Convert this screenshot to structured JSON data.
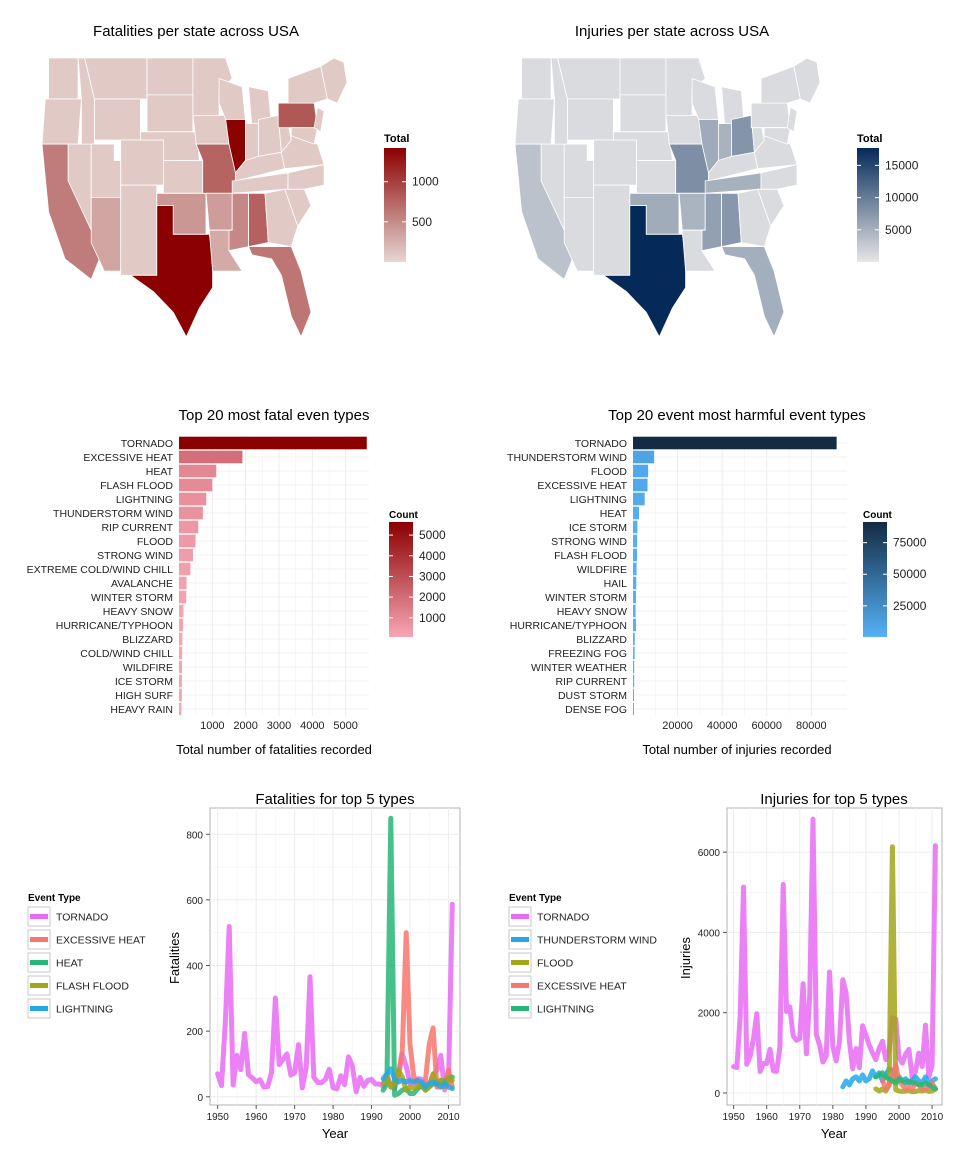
{
  "colors": {
    "red_dark": "#8b0000",
    "red_light": "#e6d7d3",
    "blue_dark": "#052a5a",
    "blue_light": "#e6e6e6",
    "bar_blue_light": "#56b1f7",
    "bar_blue_dark": "#132b43",
    "bar_red_light": "#f7a6b4",
    "bar_red_dark": "#8b0000",
    "grid": "#ececec",
    "panel_border": "#b3b3b3"
  },
  "chart_data": [
    {
      "type": "map",
      "title": "Fatalities per state across USA",
      "legend": {
        "title": "Total",
        "ticks": [
          "1000",
          "500"
        ],
        "tick_values": [
          1000,
          500
        ],
        "range": [
          0,
          1420
        ],
        "placement": "right"
      },
      "states": [
        {
          "name": "Texas",
          "value": 1420
        },
        {
          "name": "Illinois",
          "value": 1410
        },
        {
          "name": "Pennsylvania",
          "value": 840
        },
        {
          "name": "Missouri",
          "value": 760
        },
        {
          "name": "Alabama",
          "value": 780
        },
        {
          "name": "California",
          "value": 600
        },
        {
          "name": "Florida",
          "value": 640
        },
        {
          "name": "Mississippi",
          "value": 520
        },
        {
          "name": "Arizona",
          "value": 330
        },
        {
          "name": "Oklahoma",
          "value": 420
        },
        {
          "name": "Arkansas",
          "value": 380
        },
        {
          "name": "Louisiana",
          "value": 300
        }
      ]
    },
    {
      "type": "map",
      "title": "Injuries per state across USA",
      "legend": {
        "title": "Total",
        "ticks": [
          "15000",
          "10000",
          "5000"
        ],
        "tick_values": [
          15000,
          10000,
          5000
        ],
        "range": [
          0,
          17700
        ],
        "placement": "right"
      },
      "states": [
        {
          "name": "Texas",
          "value": 17700
        },
        {
          "name": "Missouri",
          "value": 8200
        },
        {
          "name": "Ohio",
          "value": 7700
        },
        {
          "name": "Alabama",
          "value": 7400
        },
        {
          "name": "Mississippi",
          "value": 6600
        },
        {
          "name": "Illinois",
          "value": 5600
        },
        {
          "name": "Oklahoma",
          "value": 5500
        },
        {
          "name": "Tennessee",
          "value": 5000
        },
        {
          "name": "Florida",
          "value": 5200
        },
        {
          "name": "Indiana",
          "value": 4800
        },
        {
          "name": "Arkansas",
          "value": 4700
        },
        {
          "name": "California",
          "value": 3400
        }
      ]
    },
    {
      "type": "bar",
      "title": "Top 20 most fatal even types",
      "xlabel": "Total number of fatalities recorded",
      "ylabel": "",
      "xlim": [
        0,
        5700
      ],
      "xticks": [
        1000,
        2000,
        3000,
        4000,
        5000
      ],
      "categories": [
        "TORNADO",
        "EXCESSIVE HEAT",
        "HEAT",
        "FLASH FLOOD",
        "LIGHTNING",
        "THUNDERSTORM WIND",
        "RIP CURRENT",
        "FLOOD",
        "STRONG WIND",
        "EXTREME COLD/WIND CHILL",
        "AVALANCHE",
        "WINTER STORM",
        "HEAVY SNOW",
        "HURRICANE/TYPHOON",
        "BLIZZARD",
        "COLD/WIND CHILL",
        "WILDFIRE",
        "ICE STORM",
        "HIGH SURF",
        "HEAVY RAIN"
      ],
      "values": [
        5633,
        1903,
        1118,
        998,
        817,
        717,
        577,
        495,
        419,
        342,
        225,
        217,
        134,
        125,
        101,
        95,
        90,
        89,
        87,
        72
      ],
      "legend": {
        "title": "Count",
        "ticks": [
          "5000",
          "4000",
          "3000",
          "2000",
          "1000"
        ],
        "tick_values": [
          5000,
          4000,
          3000,
          2000,
          1000
        ],
        "range": [
          72,
          5633
        ],
        "placement": "right"
      }
    },
    {
      "type": "bar",
      "title": "Top 20 event most harmful event types",
      "xlabel": "Total number of injuries recorded",
      "ylabel": "",
      "xlim": [
        0,
        96000
      ],
      "xticks": [
        20000,
        40000,
        60000,
        80000
      ],
      "categories": [
        "TORNADO",
        "THUNDERSTORM WIND",
        "FLOOD",
        "EXCESSIVE HEAT",
        "LIGHTNING",
        "HEAT",
        "ICE STORM",
        "STRONG WIND",
        "FLASH FLOOD",
        "WILDFIRE",
        "HAIL",
        "WINTER STORM",
        "HEAVY SNOW",
        "HURRICANE/TYPHOON",
        "BLIZZARD",
        "FREEZING FOG",
        "WINTER WEATHER",
        "RIP CURRENT",
        "DUST STORM",
        "DENSE FOG"
      ],
      "values": [
        91346,
        9493,
        6789,
        6525,
        5230,
        2682,
        1975,
        1883,
        1785,
        1606,
        1467,
        1338,
        1164,
        1333,
        805,
        734,
        538,
        529,
        440,
        342
      ],
      "legend": {
        "title": "Count",
        "ticks": [
          "75000",
          "50000",
          "25000"
        ],
        "tick_values": [
          75000,
          50000,
          25000
        ],
        "range": [
          342,
          91346
        ],
        "placement": "right"
      }
    },
    {
      "type": "line",
      "title": "Fatalities for top 5 types",
      "xlabel": "Year",
      "ylabel": "Fatalities",
      "xlim": [
        1948,
        2013
      ],
      "ylim": [
        -25,
        880
      ],
      "xticks": [
        1950,
        1960,
        1970,
        1980,
        1990,
        2000,
        2010
      ],
      "yticks": [
        0,
        200,
        400,
        600,
        800
      ],
      "legend": {
        "title": "Event Type",
        "placement": "left"
      },
      "series": [
        {
          "name": "TORNADO",
          "color": "#e76bf3",
          "x": [
            1950,
            1951,
            1952,
            1953,
            1954,
            1955,
            1956,
            1957,
            1958,
            1959,
            1960,
            1961,
            1962,
            1963,
            1964,
            1965,
            1966,
            1967,
            1968,
            1969,
            1970,
            1971,
            1972,
            1973,
            1974,
            1975,
            1976,
            1977,
            1978,
            1979,
            1980,
            1981,
            1982,
            1983,
            1984,
            1985,
            1986,
            1987,
            1988,
            1989,
            1990,
            1991,
            1992,
            1993,
            1994,
            1995,
            1996,
            1997,
            1998,
            1999,
            2000,
            2001,
            2002,
            2003,
            2004,
            2005,
            2006,
            2007,
            2008,
            2009,
            2010,
            2011
          ],
          "y": [
            70,
            34,
            230,
            519,
            36,
            126,
            83,
            193,
            67,
            58,
            46,
            52,
            30,
            31,
            73,
            301,
            98,
            114,
            131,
            66,
            73,
            159,
            27,
            89,
            366,
            60,
            44,
            43,
            53,
            84,
            28,
            24,
            64,
            37,
            122,
            94,
            15,
            59,
            32,
            50,
            53,
            39,
            39,
            33,
            69,
            30,
            25,
            67,
            130,
            94,
            41,
            40,
            55,
            54,
            35,
            38,
            67,
            81,
            126,
            21,
            45,
            587
          ]
        },
        {
          "name": "EXCESSIVE HEAT",
          "color": "#f8766d",
          "x": [
            1995,
            1996,
            1997,
            1998,
            1999,
            2000,
            2001,
            2002,
            2003,
            2004,
            2005,
            2006,
            2007,
            2008,
            2009,
            2010,
            2011
          ],
          "y": [
            40,
            30,
            70,
            140,
            500,
            160,
            60,
            40,
            30,
            50,
            160,
            210,
            30,
            30,
            40,
            80,
            30
          ]
        },
        {
          "name": "HEAT",
          "color": "#27b675",
          "x": [
            1993,
            1994,
            1995,
            1996,
            1997,
            1998,
            1999,
            2000,
            2001,
            2002,
            2003,
            2004,
            2005,
            2006,
            2007,
            2008,
            2009,
            2010,
            2011
          ],
          "y": [
            20,
            40,
            849,
            5,
            10,
            20,
            25,
            10,
            10,
            25,
            35,
            20,
            30,
            40,
            40,
            50,
            45,
            55,
            60
          ]
        },
        {
          "name": "FLASH FLOOD",
          "color": "#a3a51a",
          "x": [
            1993,
            1994,
            1995,
            1996,
            1997,
            1998,
            1999,
            2000,
            2001,
            2002,
            2003,
            2004,
            2005,
            2006,
            2007,
            2008,
            2009,
            2010,
            2011
          ],
          "y": [
            40,
            60,
            30,
            40,
            80,
            60,
            20,
            30,
            25,
            30,
            40,
            20,
            30,
            70,
            40,
            50,
            30,
            60,
            50
          ]
        },
        {
          "name": "LIGHTNING",
          "color": "#23a8e5",
          "x": [
            1993,
            1994,
            1995,
            1996,
            1997,
            1998,
            1999,
            2000,
            2001,
            2002,
            2003,
            2004,
            2005,
            2006,
            2007,
            2008,
            2009,
            2010,
            2011
          ],
          "y": [
            55,
            70,
            85,
            55,
            45,
            50,
            45,
            50,
            45,
            50,
            45,
            30,
            40,
            45,
            40,
            30,
            40,
            30,
            25
          ]
        }
      ]
    },
    {
      "type": "line",
      "title": "Injuries for top 5 types",
      "xlabel": "Year",
      "ylabel": "Injuries",
      "xlim": [
        1948,
        2013
      ],
      "ylim": [
        -300,
        7100
      ],
      "xticks": [
        1950,
        1960,
        1970,
        1980,
        1990,
        2000,
        2010
      ],
      "yticks": [
        0,
        2000,
        4000,
        6000
      ],
      "legend": {
        "title": "Event Type",
        "placement": "left"
      },
      "series": [
        {
          "name": "TORNADO",
          "color": "#e76bf3",
          "x": [
            1950,
            1951,
            1952,
            1953,
            1954,
            1955,
            1956,
            1957,
            1958,
            1959,
            1960,
            1961,
            1962,
            1963,
            1964,
            1965,
            1966,
            1967,
            1968,
            1969,
            1970,
            1971,
            1972,
            1973,
            1974,
            1975,
            1976,
            1977,
            1978,
            1979,
            1980,
            1981,
            1982,
            1983,
            1984,
            1985,
            1986,
            1987,
            1988,
            1989,
            1990,
            1991,
            1992,
            1993,
            1994,
            1995,
            1996,
            1997,
            1998,
            1999,
            2000,
            2001,
            2002,
            2003,
            2004,
            2005,
            2006,
            2007,
            2008,
            2009,
            2010,
            2011
          ],
          "y": [
            659,
            631,
            1915,
            5131,
            715,
            926,
            1355,
            1976,
            535,
            734,
            737,
            1087,
            551,
            538,
            1148,
            5197,
            2030,
            2144,
            1419,
            1311,
            1355,
            2723,
            976,
            2406,
            6824,
            1457,
            1195,
            771,
            919,
            3014,
            1157,
            798,
            1276,
            2819,
            2499,
            1299,
            602,
            1105,
            632,
            1674,
            1439,
            1196,
            997,
            832,
            1112,
            1289,
            830,
            1044,
            1874,
            1842,
            882,
            743,
            968,
            1087,
            396,
            537,
            990,
            659,
            1690,
            397,
            693,
            6163
          ]
        },
        {
          "name": "THUNDERSTORM WIND",
          "color": "#23a8e5",
          "x": [
            1983,
            1984,
            1985,
            1986,
            1987,
            1988,
            1989,
            1990,
            1991,
            1992,
            1993,
            1994,
            1995,
            1996,
            1997,
            1998,
            1999,
            2000,
            2001,
            2002,
            2003,
            2004,
            2005,
            2006,
            2007,
            2008,
            2009,
            2010,
            2011
          ],
          "y": [
            150,
            300,
            200,
            350,
            400,
            300,
            450,
            300,
            350,
            550,
            400,
            500,
            300,
            450,
            600,
            550,
            350,
            400,
            300,
            350,
            250,
            300,
            400,
            300,
            250,
            400,
            200,
            300,
            350
          ]
        },
        {
          "name": "FLOOD",
          "color": "#a3a51a",
          "x": [
            1993,
            1994,
            1995,
            1996,
            1997,
            1998,
            1999,
            2000,
            2001,
            2002,
            2003,
            2004,
            2005,
            2006,
            2007,
            2008,
            2009,
            2010,
            2011
          ],
          "y": [
            100,
            50,
            100,
            50,
            200,
            6136,
            80,
            50,
            40,
            50,
            60,
            30,
            40,
            60,
            50,
            70,
            40,
            50,
            100
          ]
        },
        {
          "name": "EXCESSIVE HEAT",
          "color": "#f8766d",
          "x": [
            1995,
            1996,
            1997,
            1998,
            1999,
            2000,
            2001,
            2002,
            2003,
            2004,
            2005,
            2006,
            2007,
            2008,
            2009,
            2010,
            2011
          ],
          "y": [
            300,
            100,
            200,
            400,
            700,
            300,
            200,
            100,
            150,
            100,
            250,
            200,
            100,
            100,
            150,
            250,
            100
          ]
        },
        {
          "name": "LIGHTNING",
          "color": "#27b675",
          "x": [
            1993,
            1994,
            1995,
            1996,
            1997,
            1998,
            1999,
            2000,
            2001,
            2002,
            2003,
            2004,
            2005,
            2006,
            2007,
            2008,
            2009,
            2010,
            2011
          ],
          "y": [
            400,
            450,
            500,
            400,
            350,
            300,
            250,
            350,
            300,
            250,
            300,
            250,
            250,
            200,
            200,
            250,
            200,
            150,
            100
          ]
        }
      ]
    }
  ]
}
